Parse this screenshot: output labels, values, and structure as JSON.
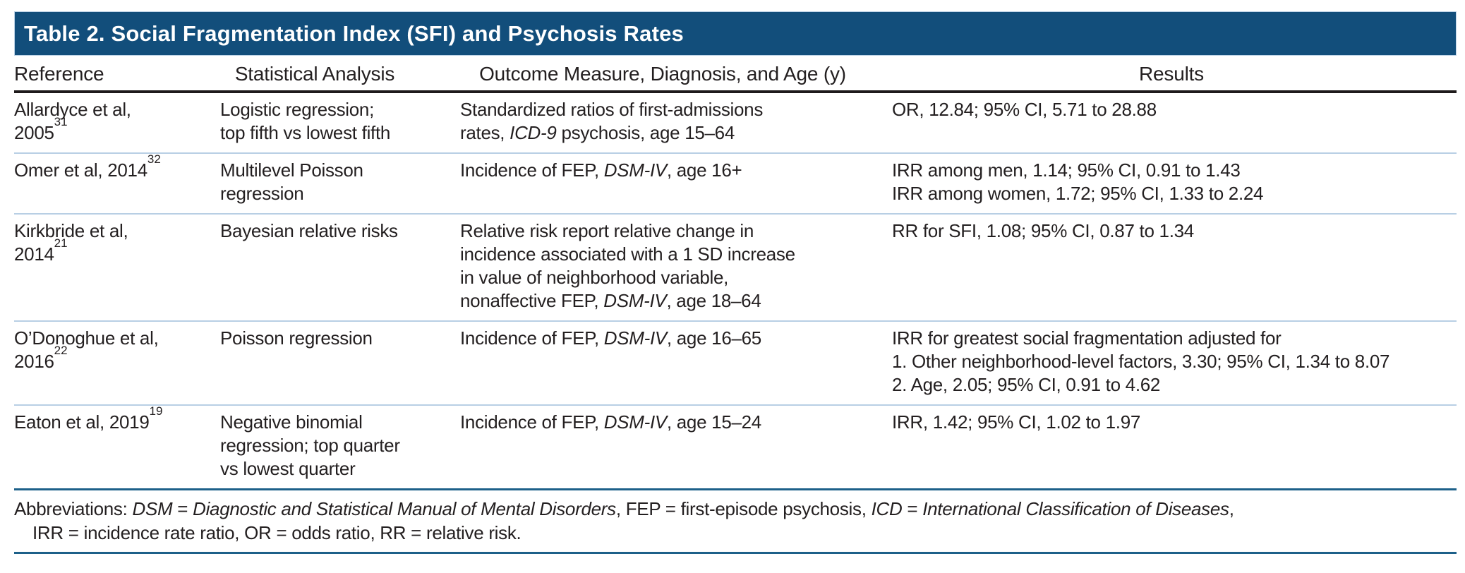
{
  "title": "Table 2. Social Fragmentation Index (SFI) and Psychosis Rates",
  "columns": {
    "reference": "Reference",
    "analysis": "Statistical Analysis",
    "outcome": "Outcome Measure, Diagnosis, and Age (y)",
    "results": "Results"
  },
  "rows": [
    {
      "reference": {
        "text": "Allardyce et al,\n2005",
        "sup": "31"
      },
      "analysis": "Logistic regression;\ntop fifth vs lowest fifth",
      "outcome": [
        {
          "text": "Standardized ratios of first-admissions\nrates, "
        },
        {
          "text": "ICD-9",
          "italic": true
        },
        {
          "text": " psychosis, age 15–64"
        }
      ],
      "results": "OR, 12.84; 95% CI, 5.71 to 28.88"
    },
    {
      "reference": {
        "text": "Omer et al, 2014",
        "sup": "32"
      },
      "analysis": "Multilevel Poisson\nregression",
      "outcome": [
        {
          "text": "Incidence of FEP, "
        },
        {
          "text": "DSM-IV",
          "italic": true
        },
        {
          "text": ", age 16+"
        }
      ],
      "results": "IRR among men, 1.14; 95% CI, 0.91 to 1.43\nIRR among women, 1.72; 95% CI, 1.33 to 2.24"
    },
    {
      "reference": {
        "text": "Kirkbride et al,\n2014",
        "sup": "21"
      },
      "analysis": "Bayesian relative risks",
      "outcome": [
        {
          "text": "Relative risk report relative change in\nincidence associated with a 1 SD increase\nin value of neighborhood variable,\nnonaffective FEP, "
        },
        {
          "text": "DSM-IV",
          "italic": true
        },
        {
          "text": ", age 18–64"
        }
      ],
      "results": "RR for SFI, 1.08; 95% CI, 0.87 to 1.34"
    },
    {
      "reference": {
        "text": "O’Donoghue et al,\n2016",
        "sup": "22"
      },
      "analysis": "Poisson regression",
      "outcome": [
        {
          "text": "Incidence of FEP, "
        },
        {
          "text": "DSM-IV",
          "italic": true
        },
        {
          "text": ", age 16–65"
        }
      ],
      "results": "IRR for greatest social fragmentation adjusted for\n1. Other neighborhood-level factors, 3.30; 95% CI, 1.34 to 8.07\n2. Age, 2.05; 95% CI, 0.91 to 4.62"
    },
    {
      "reference": {
        "text": "Eaton et al, 2019",
        "sup": "19"
      },
      "analysis": "Negative binomial\nregression; top quarter\nvs lowest quarter",
      "outcome": [
        {
          "text": "Incidence of FEP, "
        },
        {
          "text": "DSM-IV",
          "italic": true
        },
        {
          "text": ", age 15–24"
        }
      ],
      "results": "IRR, 1.42; 95% CI, 1.02 to 1.97"
    }
  ],
  "footnote": {
    "line1": [
      {
        "text": "Abbreviations: "
      },
      {
        "text": "DSM",
        "italic": true
      },
      {
        "text": " = "
      },
      {
        "text": "Diagnostic and Statistical Manual of Mental Disorders",
        "italic": true
      },
      {
        "text": ", FEP = first-episode psychosis, "
      },
      {
        "text": "ICD",
        "italic": true
      },
      {
        "text": " = "
      },
      {
        "text": "International Classification of Diseases",
        "italic": true
      },
      {
        "text": ","
      }
    ],
    "line2": "IRR = incidence rate ratio, OR = odds ratio, RR = relative risk."
  },
  "colors": {
    "header_bar": "#124e7b",
    "accent_rule": "#1d6089",
    "heavy_rule": "#1e1a1b",
    "row_divider": "#b8cfe4",
    "text": "#231f20",
    "title_text": "#ffffff"
  }
}
